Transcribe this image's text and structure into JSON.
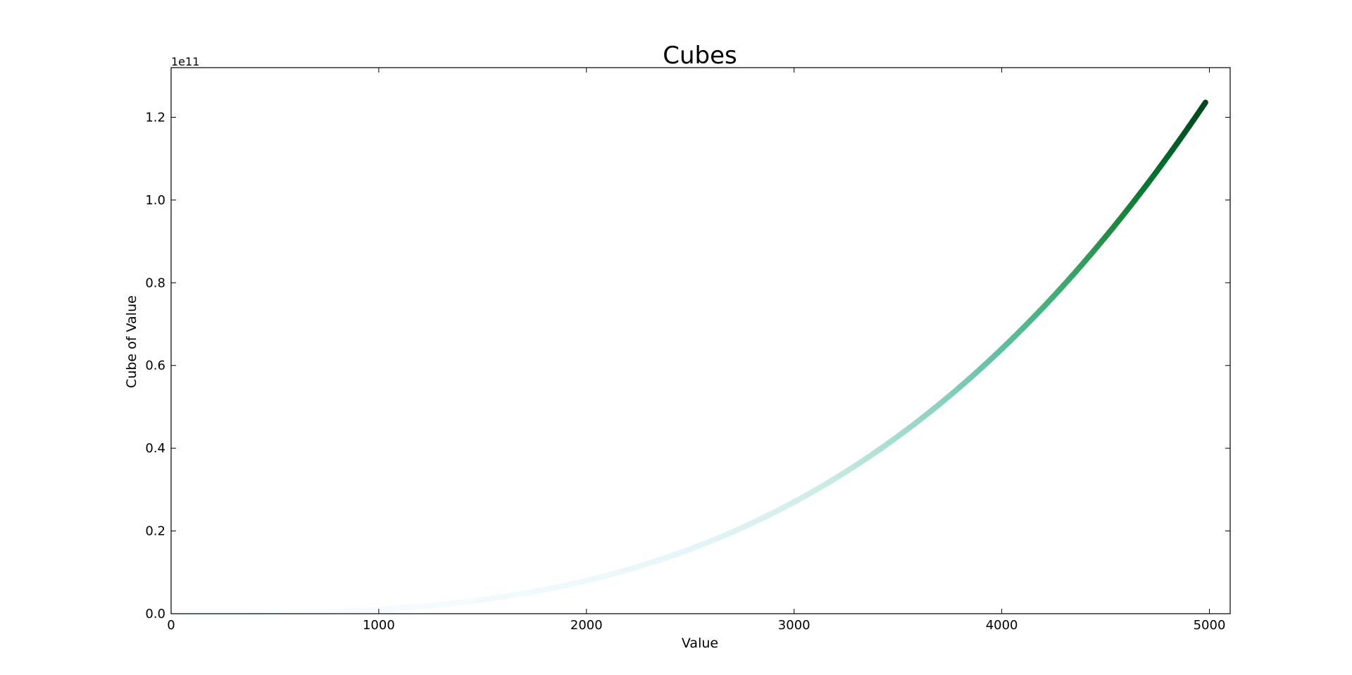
{
  "chart_data": {
    "type": "scatter",
    "title": "Cubes",
    "xlabel": "Value",
    "ylabel": "Cube of Value",
    "offset_text": "1e11",
    "xlim": [
      0,
      5100
    ],
    "ylim": [
      0,
      132000000000.0
    ],
    "x_ticks": [
      0,
      1000,
      2000,
      3000,
      4000,
      5000
    ],
    "x_tick_labels": [
      "0",
      "1000",
      "2000",
      "3000",
      "4000",
      "5000"
    ],
    "y_ticks": [
      0,
      20000000000.0,
      40000000000.0,
      60000000000.0,
      80000000000.0,
      100000000000.0,
      120000000000.0
    ],
    "y_tick_labels": [
      "0.0",
      "0.2",
      "0.4",
      "0.6",
      "0.8",
      "1.0",
      "1.2"
    ],
    "grid": false,
    "series": [
      {
        "x_start": 1,
        "x_end": 5000,
        "x_step": 1,
        "formula": "y = x^3",
        "colormap": "greens-blues",
        "color_stops": [
          "#f7fcfd",
          "#e5f5f9",
          "#ccece6",
          "#99d8c9",
          "#66c2a4",
          "#41ae76",
          "#238b45",
          "#006d2c",
          "#00441b"
        ]
      }
    ]
  }
}
